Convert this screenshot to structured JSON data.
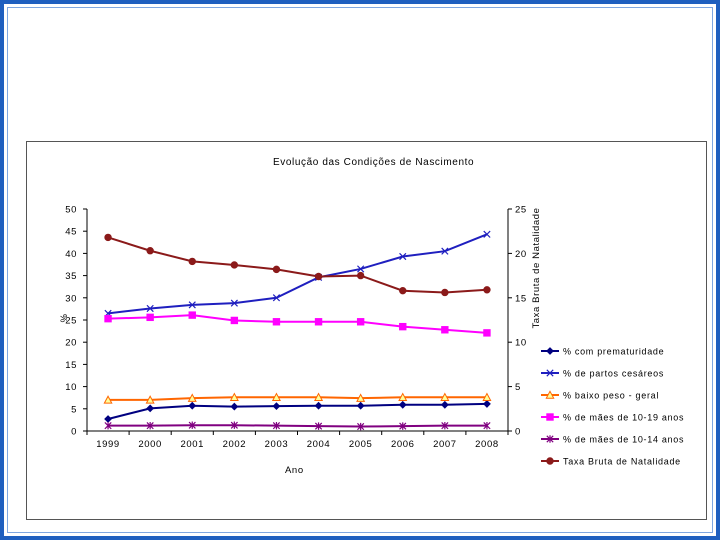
{
  "chart_data": {
    "type": "line",
    "title": "Evolução das Condições de Nascimento",
    "xlabel": "Ano",
    "ylabel_left": "%",
    "ylabel_right": "Taxa Bruta de Natalidade",
    "categories": [
      "1999",
      "2000",
      "2001",
      "2002",
      "2003",
      "2004",
      "2005",
      "2006",
      "2007",
      "2008"
    ],
    "ylim_left": [
      0,
      50
    ],
    "yticks_left": [
      0,
      5,
      10,
      15,
      20,
      25,
      30,
      35,
      40,
      45,
      50
    ],
    "ylim_right": [
      0,
      25
    ],
    "yticks_right": [
      0,
      5,
      10,
      15,
      20,
      25
    ],
    "grid": false,
    "legend_position": "right",
    "series": [
      {
        "name": "% com prematuridade",
        "axis": "left",
        "color": "#000080",
        "marker": "diamond",
        "values": [
          2.7,
          5.1,
          5.7,
          5.5,
          5.6,
          5.7,
          5.7,
          5.9,
          5.9,
          6.1
        ]
      },
      {
        "name": "% de partos cesáreos",
        "axis": "left",
        "color": "#1f1fbf",
        "marker": "x",
        "values": [
          26.5,
          27.6,
          28.4,
          28.8,
          30.0,
          34.6,
          36.5,
          39.3,
          40.5,
          44.3
        ]
      },
      {
        "name": "% baixo peso - geral",
        "axis": "left",
        "color": "#ff6600",
        "marker": "triangle",
        "values": [
          7.0,
          7.0,
          7.4,
          7.6,
          7.6,
          7.6,
          7.4,
          7.6,
          7.6,
          7.6
        ]
      },
      {
        "name": "% de mães de 10-19 anos",
        "axis": "left",
        "color": "#ff00ff",
        "marker": "square",
        "values": [
          25.3,
          25.6,
          26.1,
          24.9,
          24.6,
          24.6,
          24.6,
          23.5,
          22.8,
          22.1
        ]
      },
      {
        "name": "% de mães de 10-14 anos",
        "axis": "left",
        "color": "#800080",
        "marker": "asterisk",
        "values": [
          1.2,
          1.2,
          1.3,
          1.3,
          1.2,
          1.1,
          1.0,
          1.1,
          1.2,
          1.2
        ]
      },
      {
        "name": "Taxa Bruta de Natalidade",
        "axis": "right",
        "color": "#8b1a1a",
        "marker": "circle",
        "values": [
          21.8,
          20.3,
          19.1,
          18.7,
          18.2,
          17.4,
          17.5,
          15.8,
          15.6,
          15.9
        ]
      }
    ]
  }
}
